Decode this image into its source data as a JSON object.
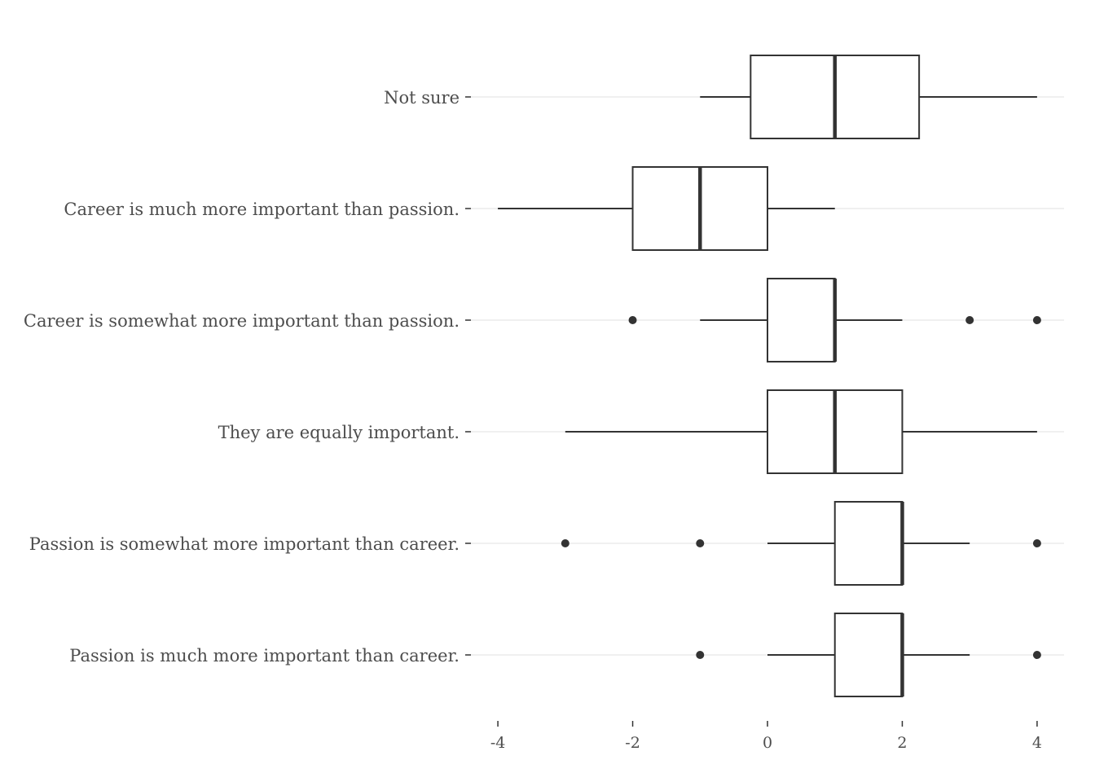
{
  "chart_data": {
    "type": "boxplot",
    "orientation": "horizontal",
    "title": "",
    "xlabel": "",
    "ylabel": "",
    "xlim": [
      -4.4,
      4.4
    ],
    "x_ticks": [
      -4,
      -2,
      0,
      2,
      4
    ],
    "x_tick_labels": [
      "-4",
      "-2",
      "0",
      "2",
      "4"
    ],
    "grid": "horizontal major lines only",
    "legend": "none",
    "colors": {
      "box_stroke": "#333333",
      "box_fill": "#ffffff",
      "grid": "#ebebeb",
      "text": "#4d4d4d"
    },
    "categories": [
      "Not sure",
      "Career is much more important than passion.",
      "Career is somewhat more important than passion.",
      "They are equally important.",
      "Passion is somewhat more important than career.",
      "Passion is much more important than career."
    ],
    "boxes": [
      {
        "category": "Not sure",
        "whisker_low": -1,
        "q1": -0.25,
        "median": 1,
        "q3": 2.25,
        "whisker_high": 4,
        "outliers": []
      },
      {
        "category": "Career is much more important than passion.",
        "whisker_low": -4,
        "q1": -2,
        "median": -1,
        "q3": 0,
        "whisker_high": 1,
        "outliers": []
      },
      {
        "category": "Career is somewhat more important than passion.",
        "whisker_low": -1,
        "q1": 0,
        "median": 1,
        "q3": 1,
        "whisker_high": 2,
        "outliers": [
          -2,
          3,
          4
        ]
      },
      {
        "category": "They are equally important.",
        "whisker_low": -3,
        "q1": 0,
        "median": 1,
        "q3": 2,
        "whisker_high": 4,
        "outliers": []
      },
      {
        "category": "Passion is somewhat more important than career.",
        "whisker_low": 0,
        "q1": 1,
        "median": 2,
        "q3": 2,
        "whisker_high": 3,
        "outliers": [
          -3,
          -1,
          4
        ]
      },
      {
        "category": "Passion is much more important than career.",
        "whisker_low": 0,
        "q1": 1,
        "median": 2,
        "q3": 2,
        "whisker_high": 3,
        "outliers": [
          -1,
          4
        ]
      }
    ]
  }
}
